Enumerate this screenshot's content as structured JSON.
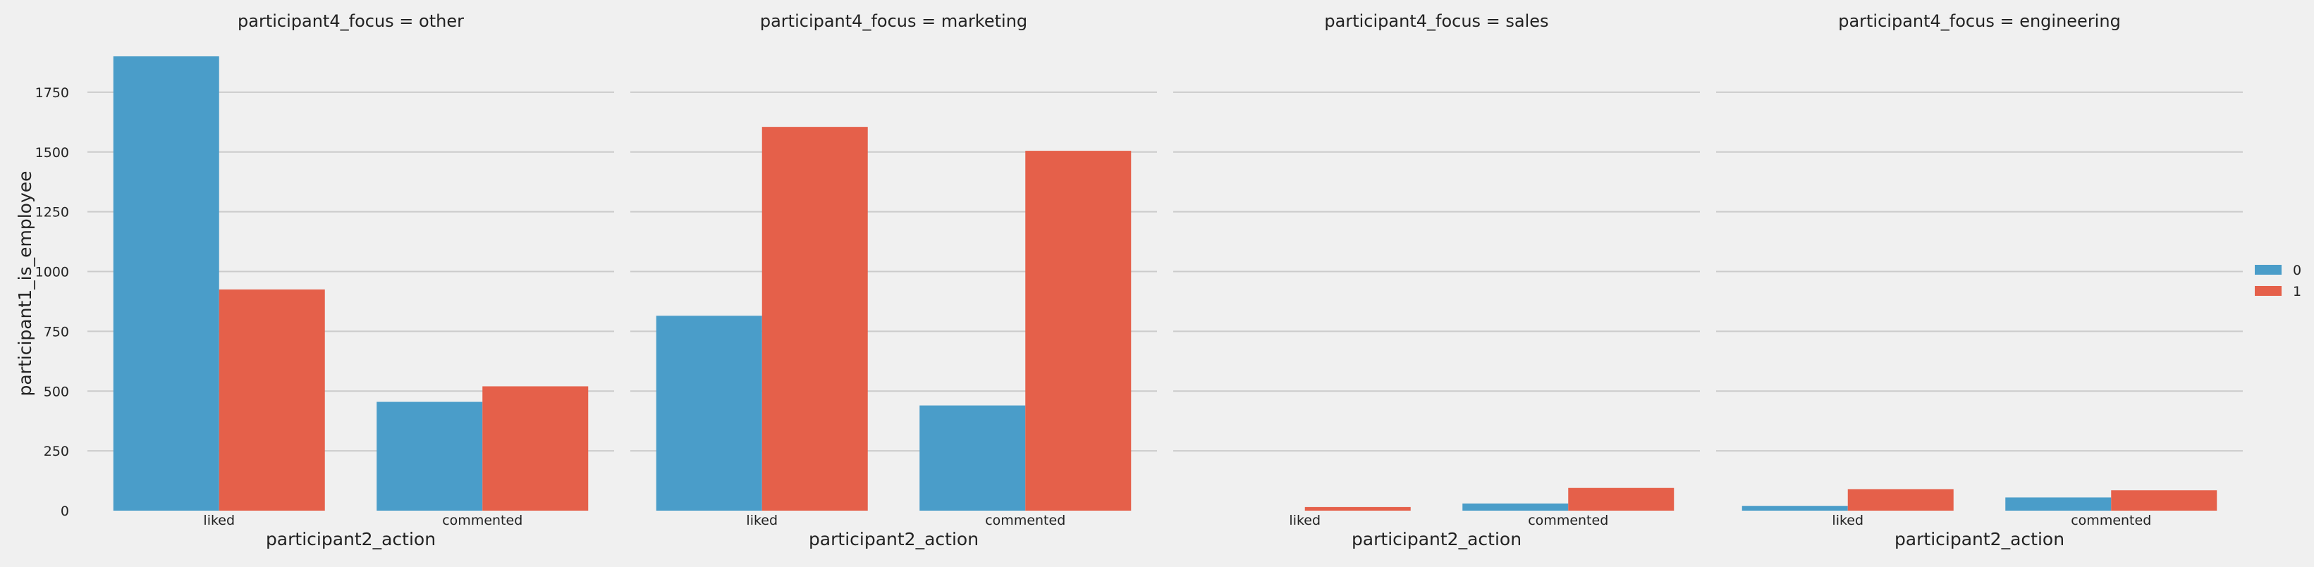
{
  "chart_data": {
    "type": "bar",
    "facet_variable": "participant4_focus",
    "xlabel": "participant2_action",
    "ylabel": "participant1_is_employee",
    "categories": [
      "liked",
      "commented"
    ],
    "ylim": [
      0,
      1900
    ],
    "yticks": [
      0,
      250,
      500,
      750,
      1000,
      1250,
      1500,
      1750
    ],
    "grid": true,
    "legend": {
      "placement": "right",
      "entries": [
        {
          "name": "0",
          "color": "#4a9dc9"
        },
        {
          "name": "1",
          "color": "#e5604a"
        }
      ]
    },
    "panels": [
      {
        "title": "participant4_focus = other",
        "series": [
          {
            "name": "0",
            "values": [
              1900,
              455
            ]
          },
          {
            "name": "1",
            "values": [
              925,
              520
            ]
          }
        ]
      },
      {
        "title": "participant4_focus = marketing",
        "series": [
          {
            "name": "0",
            "values": [
              815,
              440
            ]
          },
          {
            "name": "1",
            "values": [
              1605,
              1505
            ]
          }
        ]
      },
      {
        "title": "participant4_focus = sales",
        "series": [
          {
            "name": "0",
            "values": [
              0,
              30
            ]
          },
          {
            "name": "1",
            "values": [
              15,
              95
            ]
          }
        ]
      },
      {
        "title": "participant4_focus = engineering",
        "series": [
          {
            "name": "0",
            "values": [
              20,
              55
            ]
          },
          {
            "name": "1",
            "values": [
              90,
              85
            ]
          }
        ]
      }
    ]
  }
}
